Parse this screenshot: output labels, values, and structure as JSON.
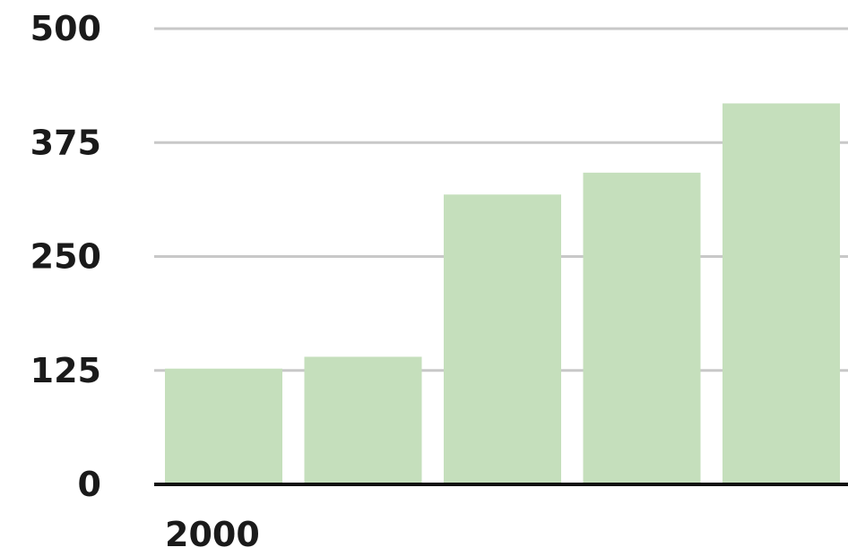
{
  "chart_data": {
    "type": "bar",
    "title": "",
    "xlabel": "",
    "ylabel": "",
    "ylim": [
      0,
      500
    ],
    "yticks": [
      "0",
      "125",
      "250",
      "375",
      "500"
    ],
    "categories": [
      "2000",
      "",
      "",
      "",
      ""
    ],
    "values": [
      127,
      140,
      318,
      342,
      418
    ],
    "grid": true,
    "colors": {
      "bar": "#c5dfbc",
      "grid": "#c8c8c8",
      "axis": "#111111",
      "text": "#1a1a1a"
    }
  }
}
